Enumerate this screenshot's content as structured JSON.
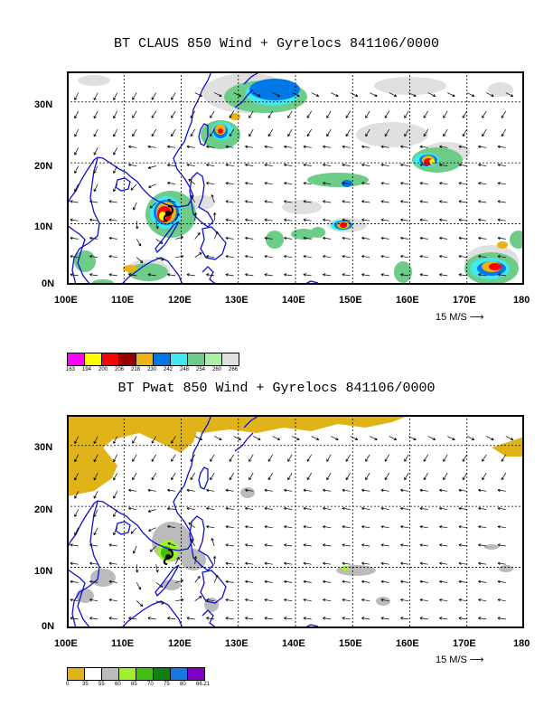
{
  "panels": [
    {
      "title": "BT CLAUS 850 Wind + Gyrelocs 841106/0000",
      "lat_labels": [
        "30N",
        "20N",
        "10N",
        "0N"
      ],
      "lon_labels": [
        "100E",
        "110E",
        "120E",
        "130E",
        "140E",
        "150E",
        "160E",
        "170E",
        "180"
      ],
      "scale_label": "15 M/S",
      "legend": {
        "colors": [
          "#ff00ff",
          "#ffff00",
          "#ff0000",
          "#9b0000",
          "#e8b418",
          "#0078e8",
          "#40e8f0",
          "#6ccc88",
          "#a8f0a8",
          "#e0e0e0"
        ],
        "labels": [
          "163",
          "194",
          "200",
          "206",
          "218",
          "230",
          "242",
          "248",
          "254",
          "260",
          "266"
        ]
      }
    },
    {
      "title": "BT Pwat 850 Wind + Gyrelocs 841106/0000",
      "lat_labels": [
        "30N",
        "20N",
        "10N",
        "0N"
      ],
      "lon_labels": [
        "100E",
        "110E",
        "120E",
        "130E",
        "140E",
        "150E",
        "160E",
        "170E",
        "180"
      ],
      "scale_label": "15 M/S",
      "legend": {
        "colors": [
          "#e0b418",
          "#ffffff",
          "#bbbbbb",
          "#a0f030",
          "#40c010",
          "#108010",
          "#1878e0",
          "#8000c8"
        ],
        "labels": [
          "0",
          "35",
          "55",
          "60",
          "65",
          "70",
          "75",
          "80",
          "66.21"
        ]
      }
    }
  ],
  "colors": {
    "coast": "#1010d0",
    "grid": "#000000"
  }
}
